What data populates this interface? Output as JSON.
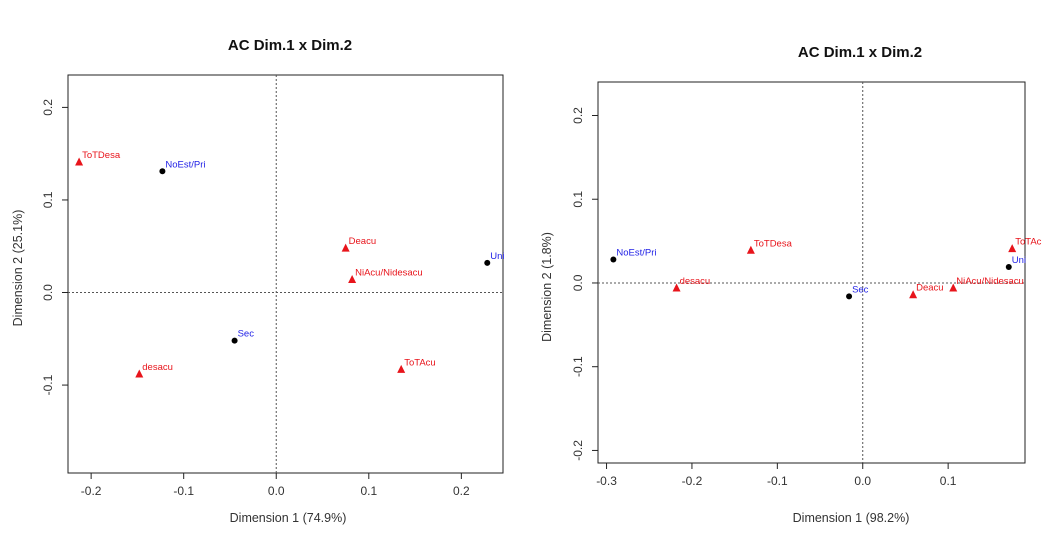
{
  "chart_data": [
    {
      "type": "scatter",
      "title": "AC Dim.1 x Dim.2",
      "xlabel": "Dimension 1 (74.9%)",
      "ylabel": "Dimension 2 (25.1%)",
      "xlim": [
        -0.225,
        0.245
      ],
      "ylim": [
        -0.195,
        0.235
      ],
      "xticks": [
        -0.2,
        -0.1,
        0.0,
        0.1,
        0.2
      ],
      "yticks": [
        -0.1,
        0.0,
        0.1,
        0.2
      ],
      "xtick_labels": [
        "-0.2",
        "-0.1",
        "0.0",
        "0.1",
        "0.2"
      ],
      "ytick_labels": [
        "-0.1",
        "0.0",
        "0.1",
        "0.2"
      ],
      "grid": false,
      "reference_lines": [
        0,
        0
      ],
      "series": [
        {
          "marker": "circle",
          "color": "#000000",
          "label_color": "#1f1fe6",
          "points": [
            {
              "label": "NoEst/Pri",
              "x": -0.123,
              "y": 0.131
            },
            {
              "label": "Uni",
              "x": 0.228,
              "y": 0.032
            },
            {
              "label": "Sec",
              "x": -0.045,
              "y": -0.052
            }
          ]
        },
        {
          "marker": "triangle",
          "color": "#e8141b",
          "label_color": "#e8141b",
          "points": [
            {
              "label": "ToTDesa",
              "x": -0.213,
              "y": 0.141
            },
            {
              "label": "Deacu",
              "x": 0.075,
              "y": 0.048
            },
            {
              "label": "NiAcu/Nidesacu",
              "x": 0.082,
              "y": 0.014
            },
            {
              "label": "desacu",
              "x": -0.148,
              "y": -0.088
            },
            {
              "label": "ToTAcu",
              "x": 0.135,
              "y": -0.083
            }
          ]
        }
      ]
    },
    {
      "type": "scatter",
      "title": "AC Dim.1 x Dim.2",
      "xlabel": "Dimension 1 (98.2%)",
      "ylabel": "Dimension 2 (1.8%)",
      "xlim": [
        -0.31,
        0.19
      ],
      "ylim": [
        -0.215,
        0.24
      ],
      "xticks": [
        -0.3,
        -0.2,
        -0.1,
        0.0,
        0.1
      ],
      "yticks": [
        -0.2,
        -0.1,
        0.0,
        0.1,
        0.2
      ],
      "xtick_labels": [
        "-0.3",
        "-0.2",
        "-0.1",
        "0.0",
        "0.1"
      ],
      "ytick_labels": [
        "-0.2",
        "-0.1",
        "0.0",
        "0.1",
        "0.2"
      ],
      "grid": false,
      "reference_lines": [
        0,
        0
      ],
      "series": [
        {
          "marker": "circle",
          "color": "#000000",
          "label_color": "#1f1fe6",
          "points": [
            {
              "label": "NoEst/Pri",
              "x": -0.292,
              "y": 0.028
            },
            {
              "label": "Sec",
              "x": -0.016,
              "y": -0.016
            },
            {
              "label": "Uni",
              "x": 0.171,
              "y": 0.019
            }
          ]
        },
        {
          "marker": "triangle",
          "color": "#e8141b",
          "label_color": "#e8141b",
          "points": [
            {
              "label": "ToTDesa",
              "x": -0.131,
              "y": 0.039
            },
            {
              "label": "desacu",
              "x": -0.218,
              "y": -0.006
            },
            {
              "label": "Deacu",
              "x": 0.059,
              "y": -0.014
            },
            {
              "label": "NiAcu/Nidesacu",
              "x": 0.106,
              "y": -0.006
            },
            {
              "label": "ToTAcu",
              "x": 0.175,
              "y": 0.041
            }
          ]
        }
      ]
    }
  ]
}
